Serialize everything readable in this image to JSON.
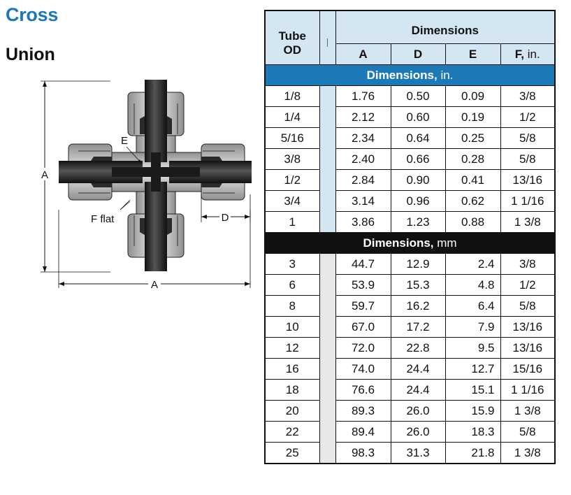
{
  "heading": {
    "title": "Cross",
    "subtitle": "Union"
  },
  "diagram": {
    "label_a_vertical": "A",
    "label_a_horizontal": "A",
    "label_e": "E",
    "label_f": "F flat",
    "label_d": "D"
  },
  "table": {
    "head": {
      "tube_od": "Tube OD",
      "dimensions": "Dimensions",
      "a": "A",
      "d": "D",
      "e": "E",
      "f": "F,",
      "f_unit": "in."
    },
    "section_in": {
      "label": "Dimensions,",
      "unit": "in."
    },
    "section_mm": {
      "label": "Dimensions,",
      "unit": "mm"
    },
    "rows_in": [
      [
        "1/8",
        "1.76",
        "0.50",
        "0.09",
        "3/8"
      ],
      [
        "1/4",
        "2.12",
        "0.60",
        "0.19",
        "1/2"
      ],
      [
        "5/16",
        "2.34",
        "0.64",
        "0.25",
        "5/8"
      ],
      [
        "3/8",
        "2.40",
        "0.66",
        "0.28",
        "5/8"
      ],
      [
        "1/2",
        "2.84",
        "0.90",
        "0.41",
        "13/16"
      ],
      [
        "3/4",
        "3.14",
        "0.96",
        "0.62",
        "1 1/16"
      ],
      [
        "1",
        "3.86",
        "1.23",
        "0.88",
        "1 3/8"
      ]
    ],
    "rows_mm": [
      [
        "3",
        "44.7",
        "12.9",
        "2.4",
        "3/8"
      ],
      [
        "6",
        "53.9",
        "15.3",
        "4.8",
        "1/2"
      ],
      [
        "8",
        "59.7",
        "16.2",
        "6.4",
        "5/8"
      ],
      [
        "10",
        "67.0",
        "17.2",
        "7.9",
        "13/16"
      ],
      [
        "12",
        "72.0",
        "22.8",
        "9.5",
        "13/16"
      ],
      [
        "16",
        "74.0",
        "24.4",
        "12.7",
        "15/16"
      ],
      [
        "18",
        "76.6",
        "24.4",
        "15.1",
        "1 1/16"
      ],
      [
        "20",
        "89.3",
        "26.0",
        "15.9",
        "1 3/8"
      ],
      [
        "22",
        "89.4",
        "26.0",
        "18.3",
        "5/8"
      ],
      [
        "25",
        "98.3",
        "31.3",
        "21.8",
        "1 3/8"
      ]
    ]
  }
}
